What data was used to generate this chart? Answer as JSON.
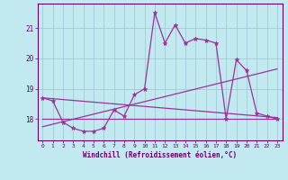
{
  "xlabel": "Windchill (Refroidissement éolien,°C)",
  "background_color": "#c2e8f0",
  "grid_color": "#a0ccd8",
  "line_color": "#993399",
  "x_data": [
    0,
    1,
    2,
    3,
    4,
    5,
    6,
    7,
    8,
    9,
    10,
    11,
    12,
    13,
    14,
    15,
    16,
    17,
    18,
    19,
    20,
    21,
    22,
    23
  ],
  "y_data": [
    18.7,
    18.6,
    17.9,
    17.7,
    17.6,
    17.6,
    17.7,
    18.3,
    18.1,
    18.8,
    19.0,
    21.5,
    20.5,
    21.1,
    20.5,
    20.65,
    20.6,
    20.5,
    18.0,
    19.95,
    19.6,
    18.2,
    18.1,
    18.0
  ],
  "trend1_x": [
    0,
    23
  ],
  "trend1_y": [
    18.7,
    18.05
  ],
  "trend2_x": [
    0,
    23
  ],
  "trend2_y": [
    17.75,
    19.65
  ],
  "trend3_x": [
    0,
    23
  ],
  "trend3_y": [
    18.0,
    18.0
  ],
  "xlim": [
    -0.5,
    23.5
  ],
  "ylim": [
    17.3,
    21.8
  ],
  "yticks": [
    18,
    19,
    20,
    21
  ],
  "xticks": [
    0,
    1,
    2,
    3,
    4,
    5,
    6,
    7,
    8,
    9,
    10,
    11,
    12,
    13,
    14,
    15,
    16,
    17,
    18,
    19,
    20,
    21,
    22,
    23
  ]
}
